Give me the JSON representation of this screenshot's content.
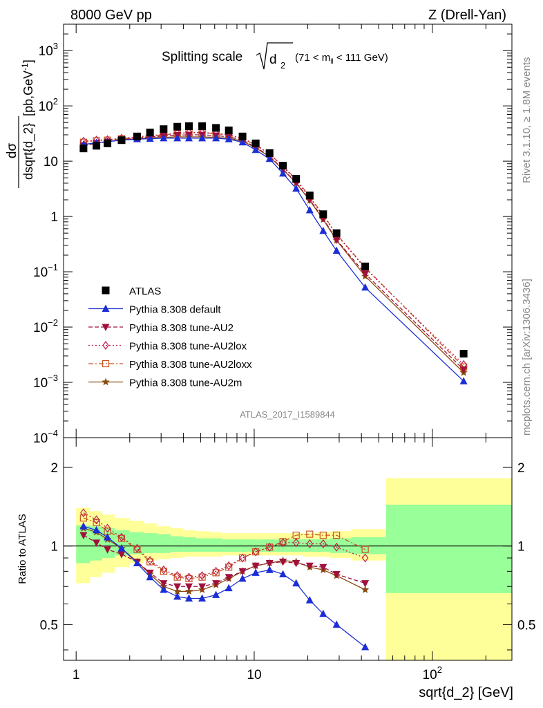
{
  "header": {
    "left_label": "8000 GeV pp",
    "right_label": "Z (Drell-Yan)",
    "side_label_1": "Rivet 3.1.10, ≥ 1.8M events",
    "side_label_2": "mcplots.cern.ch [arXiv:1306.3436]",
    "analysis_tag": "ATLAS_2017_I1589844"
  },
  "chart_data": [
    {
      "panel": "main",
      "type": "line",
      "title_main": "Splitting scale",
      "title_sqrt": "d",
      "title_sub": "2",
      "title_range_pre": "(71 < m",
      "title_range_sub": "ll",
      "title_range_post": " < 111 GeV)",
      "ylabel_num": "dσ",
      "ylabel_den": "dsqrt{d_2}",
      "ylabel_unit": "[pb,GeV",
      "ylabel_unit_sup": "-1",
      "ylabel_unit_close": "]",
      "xscale": "log",
      "yscale": "log",
      "xlim": [
        0.85,
        280
      ],
      "ylim": [
        0.0001,
        3000
      ],
      "yticks": [
        {
          "v": 0.0001,
          "b": "10",
          "e": "−4"
        },
        {
          "v": 0.001,
          "b": "10",
          "e": "−3"
        },
        {
          "v": 0.01,
          "b": "10",
          "e": "−2"
        },
        {
          "v": 0.1,
          "b": "10",
          "e": "−1"
        },
        {
          "v": 1,
          "b": "1",
          "e": ""
        },
        {
          "v": 10,
          "b": "10",
          "e": ""
        },
        {
          "v": 100,
          "b": "10",
          "e": "2"
        },
        {
          "v": 1000,
          "b": "10",
          "e": "3"
        }
      ],
      "legend": {
        "position": "lower-left",
        "entries": [
          "ATLAS",
          "Pythia 8.308 default",
          "Pythia 8.308 tune-AU2",
          "Pythia 8.308 tune-AU2lox",
          "Pythia 8.308 tune-AU2loxx",
          "Pythia 8.308 tune-AU2m"
        ]
      },
      "x": [
        1.1,
        1.3,
        1.5,
        1.8,
        2.2,
        2.6,
        3.1,
        3.7,
        4.3,
        5.1,
        6.1,
        7.2,
        8.6,
        10.2,
        12.2,
        14.5,
        17.2,
        20.5,
        24.4,
        29.0,
        42.0,
        150.0
      ],
      "series": [
        {
          "name": "ATLAS",
          "values": [
            17,
            19,
            21,
            24,
            28,
            33,
            38,
            42,
            43,
            43,
            40,
            36,
            28,
            21,
            14,
            8.3,
            4.8,
            2.4,
            1.1,
            0.5,
            0.125,
            0.0033
          ]
        },
        {
          "name": "Pythia 8.308 default",
          "values": [
            20,
            21.5,
            22.5,
            24,
            25,
            25.5,
            26,
            26,
            26,
            26,
            26,
            25,
            22,
            16,
            11,
            6.0,
            3.2,
            1.3,
            0.55,
            0.24,
            0.052,
            0.00105
          ]
        },
        {
          "name": "Pythia 8.308 tune-AU2",
          "values": [
            19,
            21,
            22.5,
            24.5,
            26,
            27.5,
            28.5,
            29.5,
            30,
            30,
            29,
            27.5,
            24,
            18,
            12.3,
            7.2,
            4.1,
            2.0,
            0.92,
            0.38,
            0.092,
            0.0017
          ]
        },
        {
          "name": "Pythia 8.308 tune-AU2lox",
          "values": [
            23,
            24,
            24.5,
            26,
            27.5,
            29,
            30.5,
            32,
            33,
            33,
            32,
            30,
            26,
            20,
            13.5,
            8.0,
            4.5,
            2.2,
            1.03,
            0.47,
            0.115,
            0.0021
          ]
        },
        {
          "name": "Pythia 8.308 tune-AU2loxx",
          "values": [
            22,
            23.5,
            24,
            25.5,
            27,
            28.5,
            30,
            31.5,
            32.5,
            32.5,
            31.5,
            29.5,
            25.5,
            19.5,
            13.5,
            8.2,
            4.7,
            2.3,
            1.07,
            0.48,
            0.12,
            0.0019
          ]
        },
        {
          "name": "Pythia 8.308 tune-AU2m",
          "values": [
            20,
            21.5,
            22.5,
            24.5,
            25.5,
            26.5,
            27,
            27.5,
            27.5,
            27.5,
            27,
            26,
            23,
            17.5,
            12,
            7.1,
            4.0,
            1.95,
            0.88,
            0.37,
            0.083,
            0.0015
          ]
        }
      ]
    },
    {
      "panel": "ratio",
      "type": "line",
      "ylabel": "Ratio to ATLAS",
      "xlabel": "sqrt{d_2} [GeV]",
      "xscale": "log",
      "yscale": "log",
      "xlim": [
        0.85,
        280
      ],
      "ylim": [
        0.365,
        2.6
      ],
      "yticks": [
        0.5,
        1,
        2
      ],
      "xticks": [
        {
          "v": 1,
          "b": "1",
          "e": ""
        },
        {
          "v": 10,
          "b": "10",
          "e": ""
        },
        {
          "v": 100,
          "b": "10",
          "e": "2"
        }
      ],
      "reference_line": 1,
      "bands": {
        "edges": [
          1.0,
          1.2,
          1.4,
          1.65,
          2.0,
          2.4,
          2.85,
          3.4,
          4.0,
          4.7,
          5.6,
          6.6,
          7.9,
          9.4,
          11.2,
          13.3,
          15.8,
          18.8,
          22.4,
          26.7,
          35.0,
          55.0,
          280.0
        ],
        "green_lo": [
          0.86,
          0.88,
          0.9,
          0.92,
          0.93,
          0.94,
          0.94,
          0.95,
          0.95,
          0.95,
          0.95,
          0.95,
          0.95,
          0.95,
          0.95,
          0.95,
          0.95,
          0.95,
          0.95,
          0.94,
          0.93,
          0.66
        ],
        "green_hi": [
          1.2,
          1.19,
          1.17,
          1.15,
          1.13,
          1.12,
          1.11,
          1.09,
          1.08,
          1.07,
          1.07,
          1.06,
          1.06,
          1.06,
          1.06,
          1.06,
          1.06,
          1.06,
          1.06,
          1.07,
          1.08,
          1.44
        ],
        "yellow_lo": [
          0.72,
          0.76,
          0.79,
          0.83,
          0.86,
          0.88,
          0.89,
          0.9,
          0.91,
          0.91,
          0.91,
          0.92,
          0.92,
          0.92,
          0.92,
          0.92,
          0.92,
          0.91,
          0.91,
          0.9,
          0.88,
          0.36
        ],
        "yellow_hi": [
          1.4,
          1.36,
          1.32,
          1.28,
          1.25,
          1.22,
          1.19,
          1.17,
          1.15,
          1.14,
          1.13,
          1.12,
          1.12,
          1.12,
          1.12,
          1.12,
          1.12,
          1.12,
          1.13,
          1.14,
          1.16,
          1.82
        ]
      },
      "x": [
        1.1,
        1.3,
        1.5,
        1.8,
        2.2,
        2.6,
        3.1,
        3.7,
        4.3,
        5.1,
        6.1,
        7.2,
        8.6,
        10.2,
        12.2,
        14.5,
        17.2,
        20.5,
        24.4,
        29.0,
        42.0
      ],
      "series": [
        {
          "name": "Pythia 8.308 default",
          "values": [
            1.19,
            1.15,
            1.08,
            0.98,
            0.86,
            0.76,
            0.68,
            0.64,
            0.63,
            0.63,
            0.65,
            0.69,
            0.75,
            0.79,
            0.81,
            0.78,
            0.72,
            0.62,
            0.55,
            0.5,
            0.41
          ]
        },
        {
          "name": "Pythia 8.308 tune-AU2",
          "values": [
            1.1,
            1.03,
            0.97,
            0.93,
            0.87,
            0.79,
            0.72,
            0.7,
            0.7,
            0.7,
            0.72,
            0.76,
            0.8,
            0.84,
            0.86,
            0.87,
            0.86,
            0.84,
            0.83,
            0.78,
            0.72
          ]
        },
        {
          "name": "Pythia 8.308 tune-AU2lox",
          "values": [
            1.34,
            1.26,
            1.17,
            1.08,
            0.98,
            0.88,
            0.81,
            0.77,
            0.76,
            0.77,
            0.8,
            0.84,
            0.9,
            0.95,
            0.99,
            1.03,
            1.03,
            1.02,
            1.02,
            0.99,
            0.9
          ]
        },
        {
          "name": "Pythia 8.308 tune-AU2loxx",
          "values": [
            1.28,
            1.23,
            1.14,
            1.07,
            0.97,
            0.87,
            0.8,
            0.76,
            0.75,
            0.76,
            0.79,
            0.83,
            0.9,
            0.95,
            0.99,
            1.04,
            1.1,
            1.11,
            1.1,
            1.1,
            0.97
          ]
        },
        {
          "name": "Pythia 8.308 tune-AU2m",
          "values": [
            1.17,
            1.13,
            1.06,
            0.98,
            0.87,
            0.78,
            0.7,
            0.67,
            0.67,
            0.68,
            0.71,
            0.75,
            0.8,
            0.84,
            0.86,
            0.88,
            0.87,
            0.83,
            0.81,
            0.77,
            0.68
          ]
        }
      ]
    }
  ],
  "colors": {
    "ATLAS": "#000000",
    "Pythia 8.308 default": "#1b2ed6",
    "Pythia 8.308 tune-AU2": "#a0103c",
    "Pythia 8.308 tune-AU2lox": "#c0204a",
    "Pythia 8.308 tune-AU2loxx": "#c85420",
    "Pythia 8.308 tune-AU2m": "#8a4a10",
    "band_green": "#99ff99",
    "band_yellow": "#ffff99"
  },
  "markers": {
    "ATLAS": "square",
    "Pythia 8.308 default": "triangle-up",
    "Pythia 8.308 tune-AU2": "triangle-down",
    "Pythia 8.308 tune-AU2lox": "open-diamond",
    "Pythia 8.308 tune-AU2loxx": "open-square",
    "Pythia 8.308 tune-AU2m": "star"
  },
  "dashes": {
    "Pythia 8.308 default": "",
    "Pythia 8.308 tune-AU2": "6,3",
    "Pythia 8.308 tune-AU2lox": "2,3",
    "Pythia 8.308 tune-AU2loxx": "7,3,2,3",
    "Pythia 8.308 tune-AU2m": ""
  }
}
